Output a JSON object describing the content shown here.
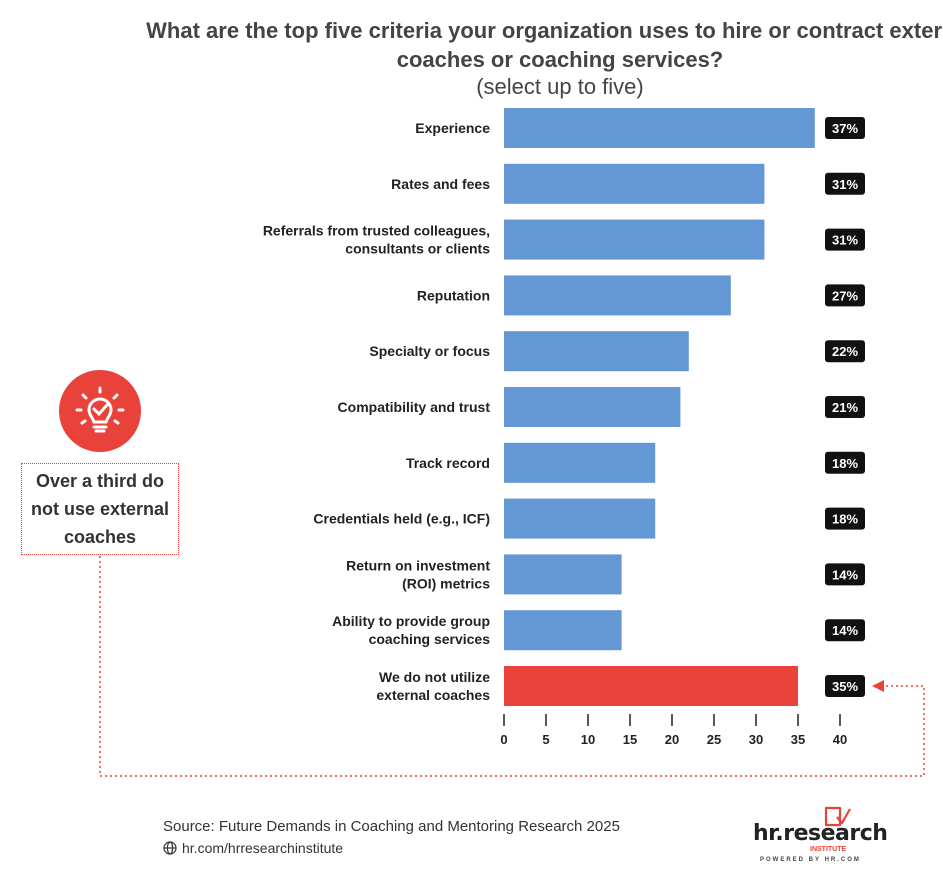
{
  "chart_data": {
    "type": "bar",
    "orientation": "horizontal",
    "title": "What are the top five criteria your organization uses to hire or contract external coaches or coaching services?",
    "subtitle": "(select up to five)",
    "categories": [
      [
        "Experience"
      ],
      [
        "Rates and fees"
      ],
      [
        "Referrals from trusted colleagues,",
        "consultants or clients"
      ],
      [
        "Reputation"
      ],
      [
        "Specialty or focus"
      ],
      [
        "Compatibility and trust"
      ],
      [
        "Track record"
      ],
      [
        "Credentials held (e.g., ICF)"
      ],
      [
        "Return on investment",
        "(ROI) metrics"
      ],
      [
        "Ability to provide group",
        "coaching services"
      ],
      [
        "We do not utilize",
        "external coaches"
      ]
    ],
    "values": [
      37,
      31,
      31,
      27,
      22,
      21,
      18,
      18,
      14,
      14,
      35
    ],
    "value_labels": [
      "37%",
      "31%",
      "31%",
      "27%",
      "22%",
      "21%",
      "18%",
      "18%",
      "14%",
      "14%",
      "35%"
    ],
    "highlight_index": 10,
    "xlim": [
      0,
      40
    ],
    "xticks": [
      0,
      5,
      10,
      15,
      20,
      25,
      30,
      35,
      40
    ],
    "grid": false,
    "colors": {
      "bar": "#6498d4",
      "highlight": "#e8423a",
      "label_bg": "#111111",
      "label_text": "#ffffff"
    }
  },
  "callout": {
    "text": "Over a third do not use external coaches",
    "icon": "lightbulb-icon"
  },
  "footer": {
    "source": "Source:  Future Demands in Coaching and Mentoring Research 2025",
    "website": "hr.com/hrresearchinstitute",
    "website_icon": "globe-icon",
    "logo_text": "hr.research",
    "logo_sub": "INSTITUTE",
    "logo_tagline": "POWERED BY HR.COM"
  }
}
